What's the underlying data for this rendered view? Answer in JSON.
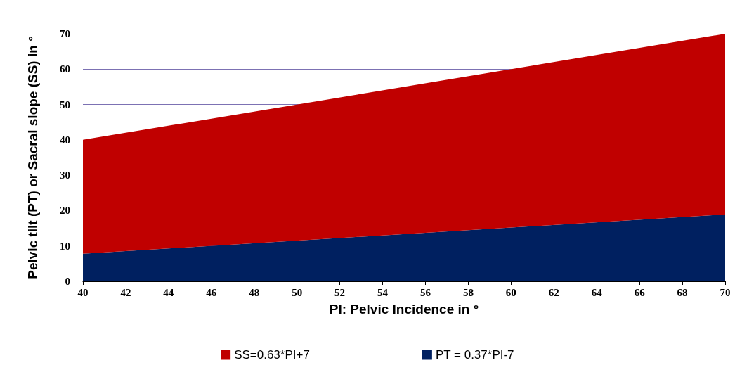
{
  "chart_data": {
    "type": "area",
    "stacked": true,
    "xlabel": "PI: Pelvic Incidence in °",
    "ylabel": "Pelvic tilt (PT) or Sacral slope (SS) in °",
    "x": [
      40,
      70
    ],
    "series": [
      {
        "name": "PT = 0.37*PI-7",
        "color": "#002060",
        "values": [
          7.8,
          18.9
        ]
      },
      {
        "name": "SS=0.63*PI+7",
        "color": "#c00000",
        "values": [
          32.2,
          51.1
        ]
      }
    ],
    "xlim": [
      40,
      70
    ],
    "xticks": [
      40,
      42,
      44,
      46,
      48,
      50,
      52,
      54,
      56,
      58,
      60,
      62,
      64,
      66,
      68,
      70
    ],
    "ylim": [
      0,
      70
    ],
    "yticks": [
      0,
      10,
      20,
      30,
      40,
      50,
      60,
      70
    ],
    "grid": "y",
    "legend": "bottom"
  }
}
